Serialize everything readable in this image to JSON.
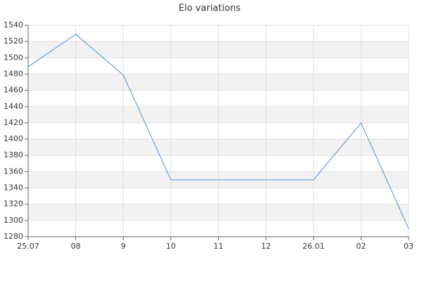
{
  "chart_data": {
    "type": "line",
    "title": "Elo variations",
    "categories": [
      "25.07",
      "08",
      "9",
      "10",
      "11",
      "12",
      "26.01",
      "02",
      "03"
    ],
    "series": [
      {
        "name": "Elo",
        "color": "#4a8fe0",
        "values": [
          1489,
          1529,
          1479,
          1350,
          1350,
          1350,
          1350,
          1420,
          1290
        ]
      }
    ],
    "ylim": [
      1280,
      1540
    ],
    "yticks": [
      1280,
      1300,
      1320,
      1340,
      1360,
      1380,
      1400,
      1420,
      1440,
      1460,
      1480,
      1500,
      1520,
      1540
    ],
    "grid": true
  }
}
